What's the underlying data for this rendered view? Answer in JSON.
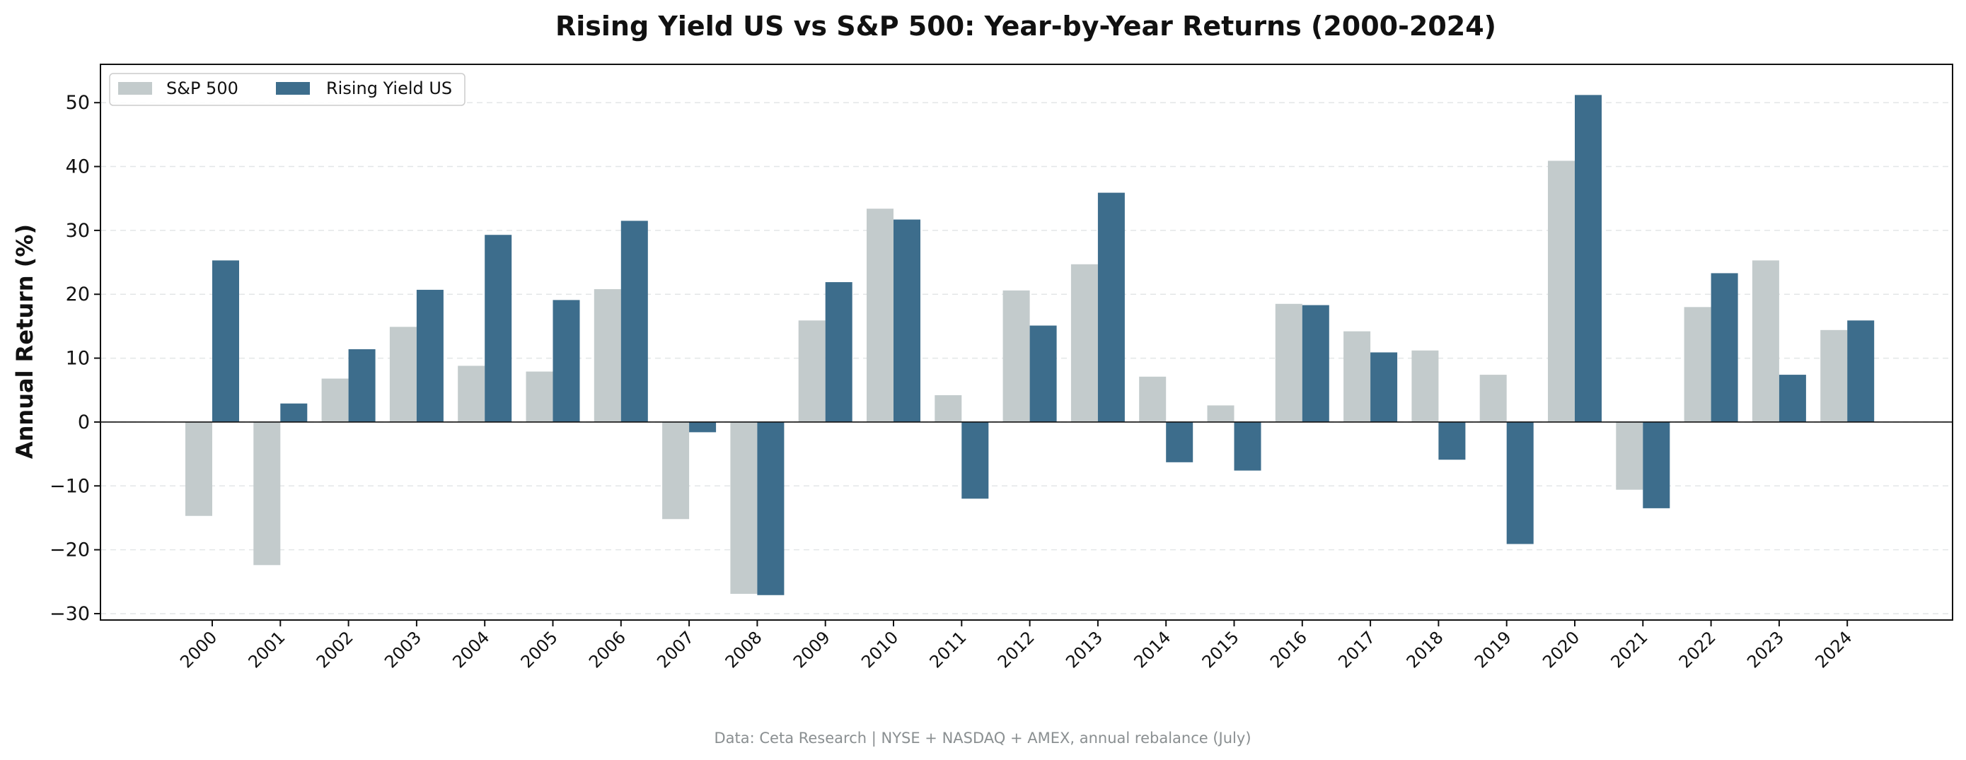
{
  "chart_data": {
    "type": "bar",
    "title": "Rising Yield US vs S&P 500: Year-by-Year Returns (2000-2024)",
    "xlabel": "",
    "ylabel": "Annual Return (%)",
    "ylim": [
      -31,
      56
    ],
    "yticks": [
      -30,
      -20,
      -10,
      0,
      10,
      20,
      30,
      40,
      50
    ],
    "ytick_labels": [
      "−30",
      "−20",
      "−10",
      "0",
      "10",
      "20",
      "30",
      "40",
      "50"
    ],
    "grid": "horizontal dashed",
    "legend_position": "top-left",
    "categories": [
      "2000",
      "2001",
      "2002",
      "2003",
      "2004",
      "2005",
      "2006",
      "2007",
      "2008",
      "2009",
      "2010",
      "2011",
      "2012",
      "2013",
      "2014",
      "2015",
      "2016",
      "2017",
      "2018",
      "2019",
      "2020",
      "2021",
      "2022",
      "2023",
      "2024"
    ],
    "series": [
      {
        "name": "S&P 500",
        "color": "#c3cbcc",
        "values": [
          -14.7,
          -22.4,
          6.8,
          14.9,
          8.8,
          7.9,
          20.8,
          -15.2,
          -26.9,
          15.9,
          33.4,
          4.2,
          20.6,
          24.7,
          7.1,
          2.6,
          18.5,
          14.2,
          11.2,
          7.4,
          40.9,
          -10.6,
          18.0,
          25.3,
          14.4
        ]
      },
      {
        "name": "Rising Yield US",
        "color": "#3d6d8c",
        "values": [
          25.3,
          2.9,
          11.4,
          20.7,
          29.3,
          19.1,
          31.5,
          -1.6,
          -27.1,
          21.9,
          31.7,
          -12.0,
          15.1,
          35.9,
          -6.3,
          -7.6,
          18.3,
          10.9,
          -5.9,
          -19.1,
          51.2,
          -13.5,
          23.3,
          7.4,
          15.9
        ]
      }
    ],
    "footnote": "Data: Ceta Research | NYSE + NASDAQ + AMEX, annual rebalance (July)"
  }
}
